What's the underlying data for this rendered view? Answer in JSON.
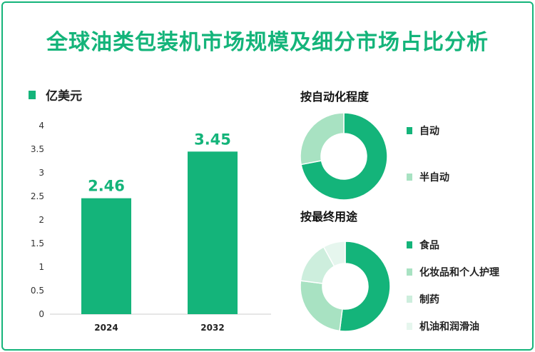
{
  "title": "全球油类包装机市场规模及细分市场占比分析",
  "colors": {
    "brand": "#14b47a",
    "light_green": "#a8e2c2",
    "pale_green": "#cdeedd",
    "very_pale_green": "#e6f6ee"
  },
  "chart_data": [
    {
      "type": "bar",
      "legend": [
        "亿美元"
      ],
      "categories": [
        "2024",
        "2032"
      ],
      "values": [
        2.46,
        3.45
      ],
      "value_labels": [
        "2.46",
        "3.45"
      ],
      "yticks": [
        "0",
        "0.5",
        "1",
        "1.5",
        "2",
        "2.5",
        "3",
        "3.5",
        "4"
      ],
      "ylim": [
        0,
        4
      ],
      "grid": false
    },
    {
      "type": "pie",
      "title": "按自动化程度",
      "labels": [
        "自动",
        "半自动"
      ],
      "values": [
        72,
        28
      ],
      "colors": [
        "#14b47a",
        "#a8e2c2"
      ]
    },
    {
      "type": "pie",
      "title": "按最终用途",
      "labels": [
        "食品",
        "化妆品和个人护理",
        "制药",
        "机油和润滑油"
      ],
      "values": [
        52,
        25,
        15,
        8
      ],
      "colors": [
        "#14b47a",
        "#a8e2c2",
        "#cdeedd",
        "#e6f6ee"
      ]
    }
  ]
}
